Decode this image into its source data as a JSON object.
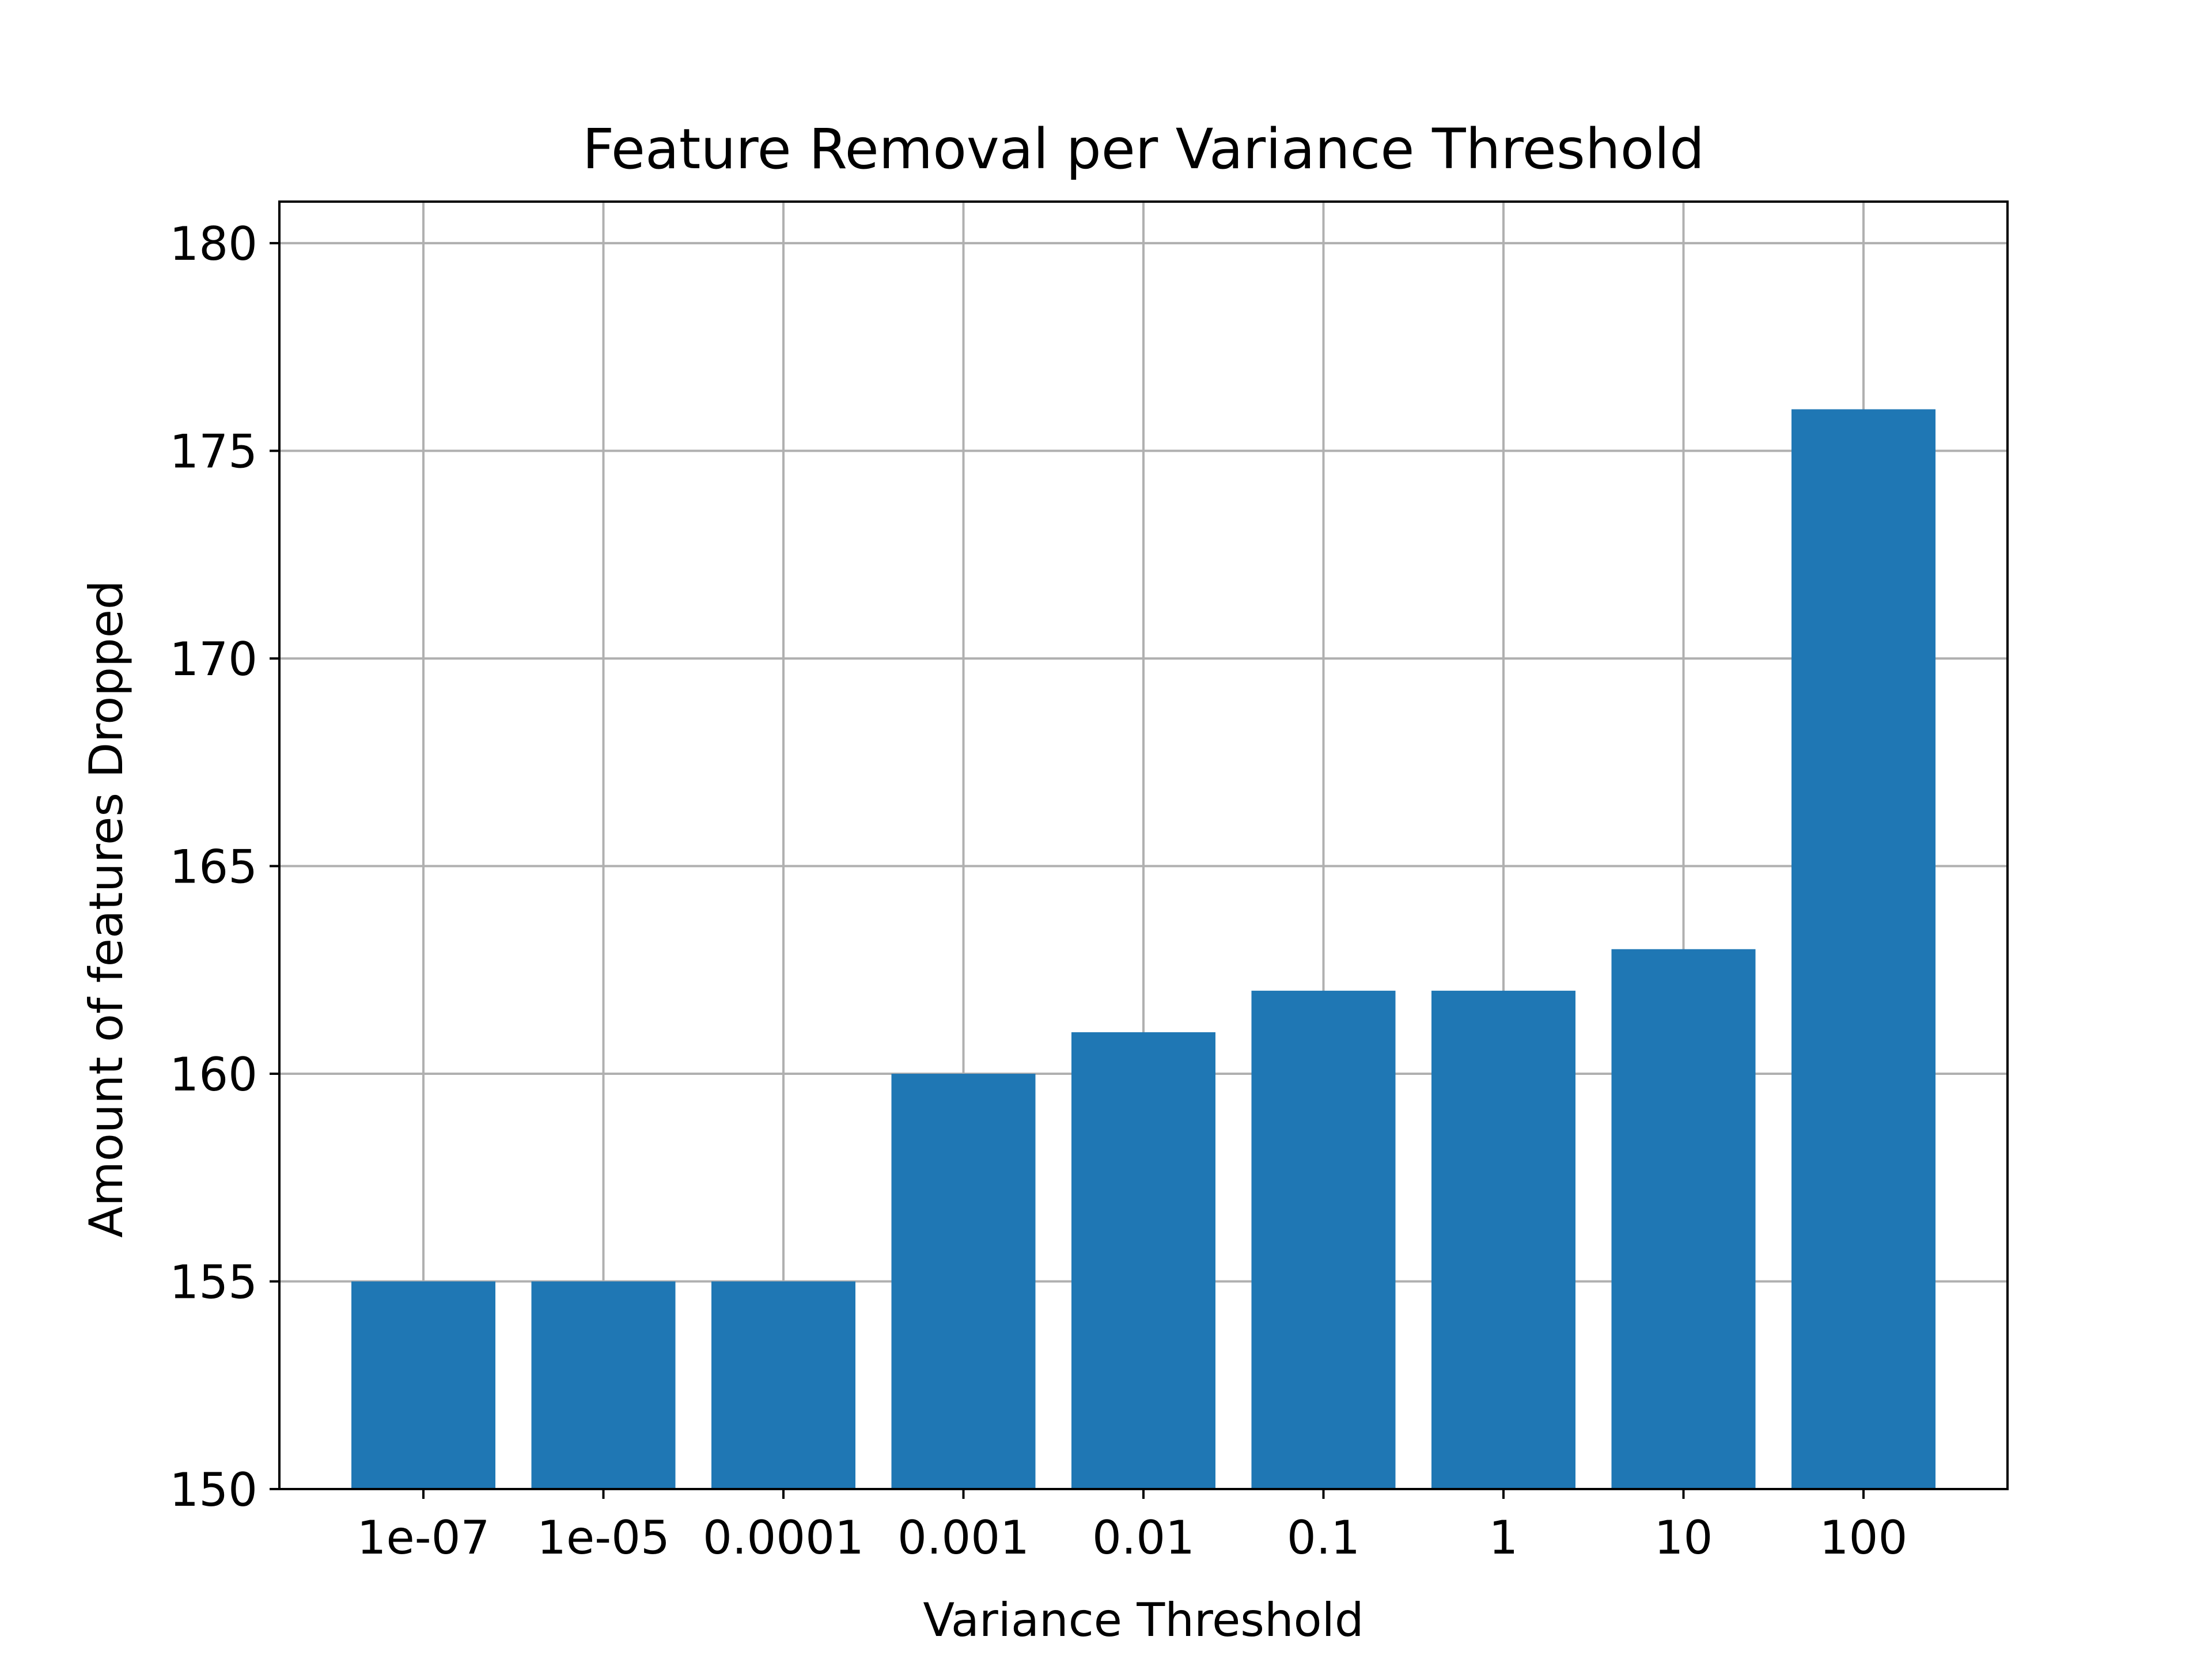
{
  "chart_data": {
    "type": "bar",
    "title": "Feature Removal per Variance Threshold",
    "xlabel": "Variance Threshold",
    "ylabel": "Amount of features Dropped",
    "categories": [
      "1e-07",
      "1e-05",
      "0.0001",
      "0.001",
      "0.01",
      "0.1",
      "1",
      "10",
      "100"
    ],
    "values": [
      155,
      155,
      155,
      160,
      161,
      162,
      162,
      163,
      176
    ],
    "ylim": [
      150,
      181
    ],
    "yticks": [
      150,
      155,
      160,
      165,
      170,
      175,
      180
    ],
    "grid": true,
    "bar_color": "#1f77b4",
    "grid_color": "#b0b0b0"
  }
}
